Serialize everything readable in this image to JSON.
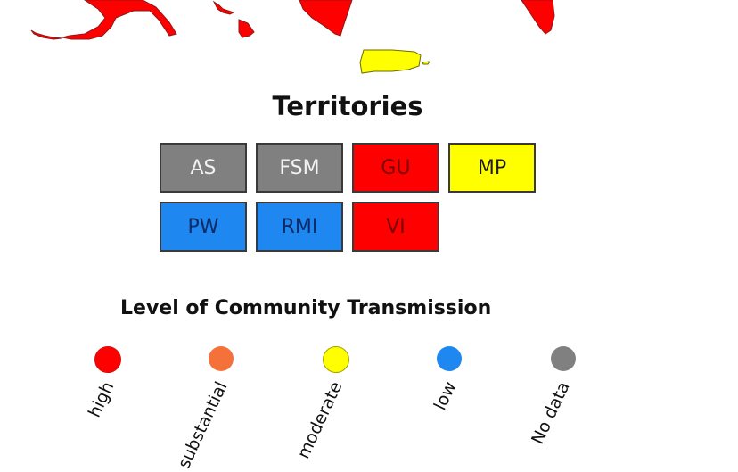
{
  "map": {
    "states_color": "#ff0000",
    "puerto_rico_color": "#ffff00"
  },
  "territories": {
    "title": "Territories",
    "items": [
      {
        "code": "AS",
        "color": "#808080",
        "text_color": "#f2f2f2"
      },
      {
        "code": "FSM",
        "color": "#808080",
        "text_color": "#f2f2f2"
      },
      {
        "code": "GU",
        "color": "#ff0000",
        "text_color": "#7a0000"
      },
      {
        "code": "MP",
        "color": "#ffff00",
        "text_color": "#1a1a1a"
      },
      {
        "code": "PW",
        "color": "#1e88f0",
        "text_color": "#0b2a66"
      },
      {
        "code": "RMI",
        "color": "#1e88f0",
        "text_color": "#0b2a66"
      },
      {
        "code": "VI",
        "color": "#ff0000",
        "text_color": "#7a0000"
      }
    ]
  },
  "legend": {
    "title": "Level of Community Transmission",
    "items": [
      {
        "label": "high",
        "color": "#ff0000"
      },
      {
        "label": "substantial",
        "color": "#f4713a"
      },
      {
        "label": "moderate",
        "color": "#ffff00"
      },
      {
        "label": "low",
        "color": "#1e88f0"
      },
      {
        "label": "No data",
        "color": "#808080"
      }
    ]
  }
}
